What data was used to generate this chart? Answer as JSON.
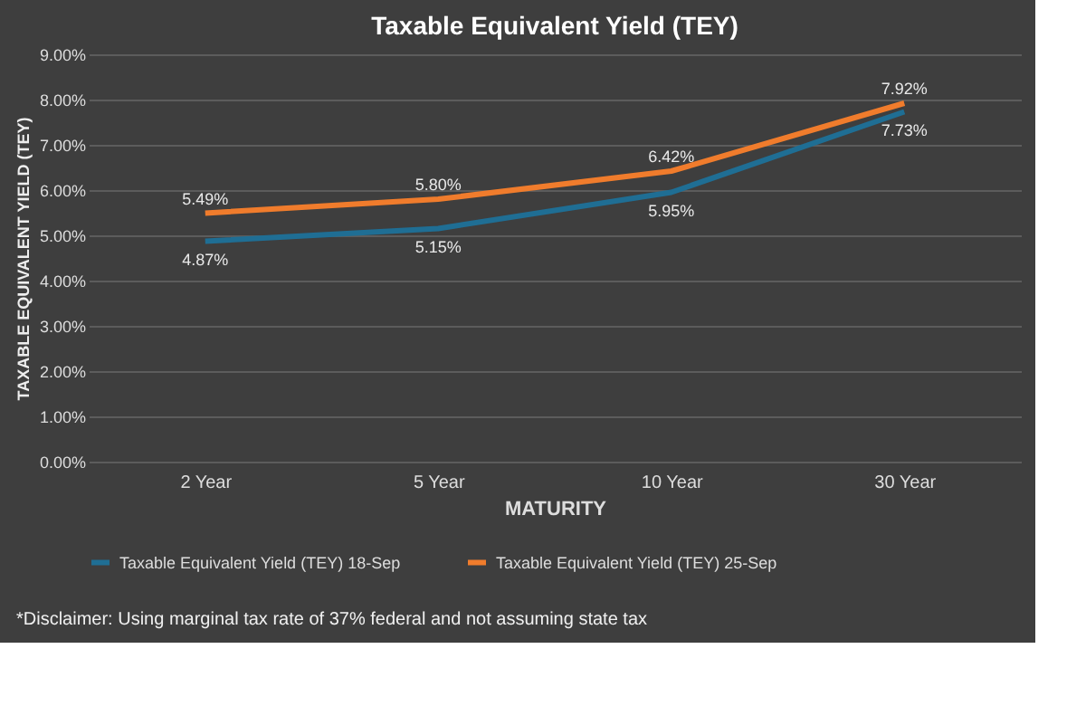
{
  "chart_data": {
    "type": "line",
    "title": "Taxable Equivalent Yield (TEY)",
    "xlabel": "MATURITY",
    "ylabel": "TAXABLE EQUIVALENT YIELD (TEY)",
    "categories": [
      "2 Year",
      "5 Year",
      "10 Year",
      "30 Year"
    ],
    "series": [
      {
        "name": "Taxable Equivalent Yield (TEY) 18-Sep",
        "color": "#1f6e94",
        "values": [
          4.87,
          5.15,
          5.95,
          7.73
        ]
      },
      {
        "name": "Taxable Equivalent Yield (TEY) 25-Sep",
        "color": "#f07c2c",
        "values": [
          5.49,
          5.8,
          6.42,
          7.92
        ]
      }
    ],
    "ylim": [
      0,
      9
    ],
    "yticks": [
      {
        "value": 0,
        "label": "0.00%"
      },
      {
        "value": 1,
        "label": "1.00%"
      },
      {
        "value": 2,
        "label": "2.00%"
      },
      {
        "value": 3,
        "label": "3.00%"
      },
      {
        "value": 4,
        "label": "4.00%"
      },
      {
        "value": 5,
        "label": "5.00%"
      },
      {
        "value": 6,
        "label": "6.00%"
      },
      {
        "value": 7,
        "label": "7.00%"
      },
      {
        "value": 8,
        "label": "8.00%"
      },
      {
        "value": 9,
        "label": "9.00%"
      }
    ],
    "value_labels": [
      [
        "4.87%",
        "5.15%",
        "5.95%",
        "7.73%"
      ],
      [
        "5.49%",
        "5.80%",
        "6.42%",
        "7.92%"
      ]
    ],
    "grid": "y",
    "legend": "bottom",
    "marker": "none",
    "line_style": "solid",
    "annotations": [
      "*Disclaimer: Using marginal tax rate of 37% federal and not assuming state tax"
    ]
  }
}
